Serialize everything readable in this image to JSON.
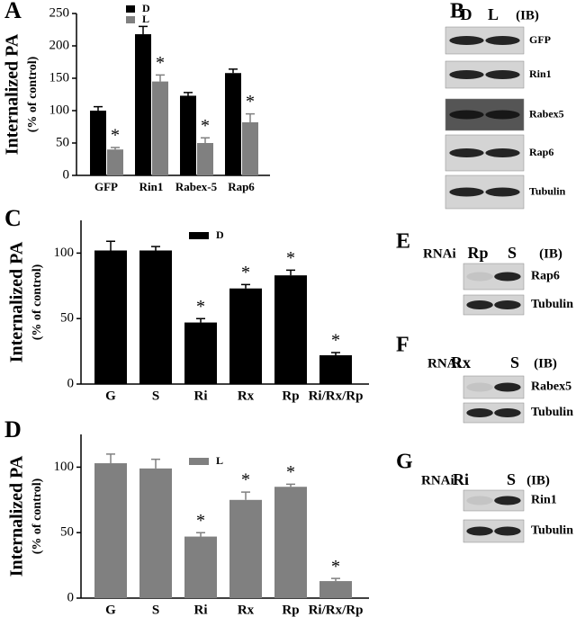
{
  "chart_data": [
    {
      "type": "bar",
      "panel": "A",
      "ylabel": "Internalized PA",
      "ylabel2": "(% of control)",
      "categories": [
        "GFP",
        "Rin1",
        "Rabex-5",
        "Rap6"
      ],
      "series": [
        {
          "name": "D",
          "color": "#000000",
          "values": [
            100,
            218,
            123,
            158
          ],
          "error": [
            6,
            12,
            5,
            6
          ],
          "labels": [
            null,
            null,
            null,
            null
          ]
        },
        {
          "name": "L",
          "color": "#808080",
          "values": [
            40,
            145,
            50,
            82
          ],
          "error": [
            3,
            10,
            8,
            13
          ],
          "labels": [
            "*",
            "*",
            "*",
            "*"
          ]
        }
      ],
      "ylim": [
        0,
        250
      ],
      "yticks": [
        0,
        50,
        100,
        150,
        200,
        250
      ]
    },
    {
      "type": "bar",
      "panel": "C",
      "ylabel": "Internalized PA",
      "ylabel2": "(% of control)",
      "categories": [
        "G",
        "S",
        "Ri",
        "Rx",
        "Rp",
        "Ri/Rx/Rp"
      ],
      "series": [
        {
          "name": "D",
          "color": "#000000",
          "values": [
            102,
            102,
            47,
            73,
            83,
            22
          ],
          "error": [
            7,
            3,
            3,
            3,
            4,
            2
          ],
          "labels": [
            null,
            null,
            "*",
            "*",
            "*",
            "*"
          ]
        }
      ],
      "ylim": [
        0,
        125
      ],
      "yticks": [
        0,
        50,
        100
      ]
    },
    {
      "type": "bar",
      "panel": "D",
      "ylabel": "Internalized PA",
      "ylabel2": "(% of control)",
      "categories": [
        "G",
        "S",
        "Ri",
        "Rx",
        "Rp",
        "Ri/Rx/Rp"
      ],
      "series": [
        {
          "name": "L",
          "color": "#808080",
          "values": [
            103,
            99,
            47,
            75,
            85,
            13
          ],
          "error": [
            7,
            7,
            3,
            6,
            2,
            2
          ],
          "labels": [
            null,
            null,
            "*",
            "*",
            "*",
            "*"
          ]
        }
      ],
      "ylim": [
        0,
        125
      ],
      "yticks": [
        0,
        50,
        100
      ]
    }
  ],
  "blots": [
    {
      "panel": "B",
      "header": [
        "D",
        "L",
        "(IB)"
      ],
      "rows": [
        "GFP",
        "Rin1",
        "Rabex5",
        "Rap6",
        "Tubulin"
      ]
    },
    {
      "panel": "E",
      "prefix": "RNAi",
      "header": [
        "Rp",
        "S",
        "(IB)"
      ],
      "rows": [
        "Rap6",
        "Tubulin"
      ]
    },
    {
      "panel": "F",
      "prefix": "RNAi",
      "header": [
        "Rx",
        "S",
        "(IB)"
      ],
      "rows": [
        "Rabex5",
        "Tubulin"
      ]
    },
    {
      "panel": "G",
      "prefix": "RNAi",
      "header": [
        "Ri",
        "S",
        "(IB)"
      ],
      "rows": [
        "Rin1",
        "Tubulin"
      ]
    }
  ]
}
